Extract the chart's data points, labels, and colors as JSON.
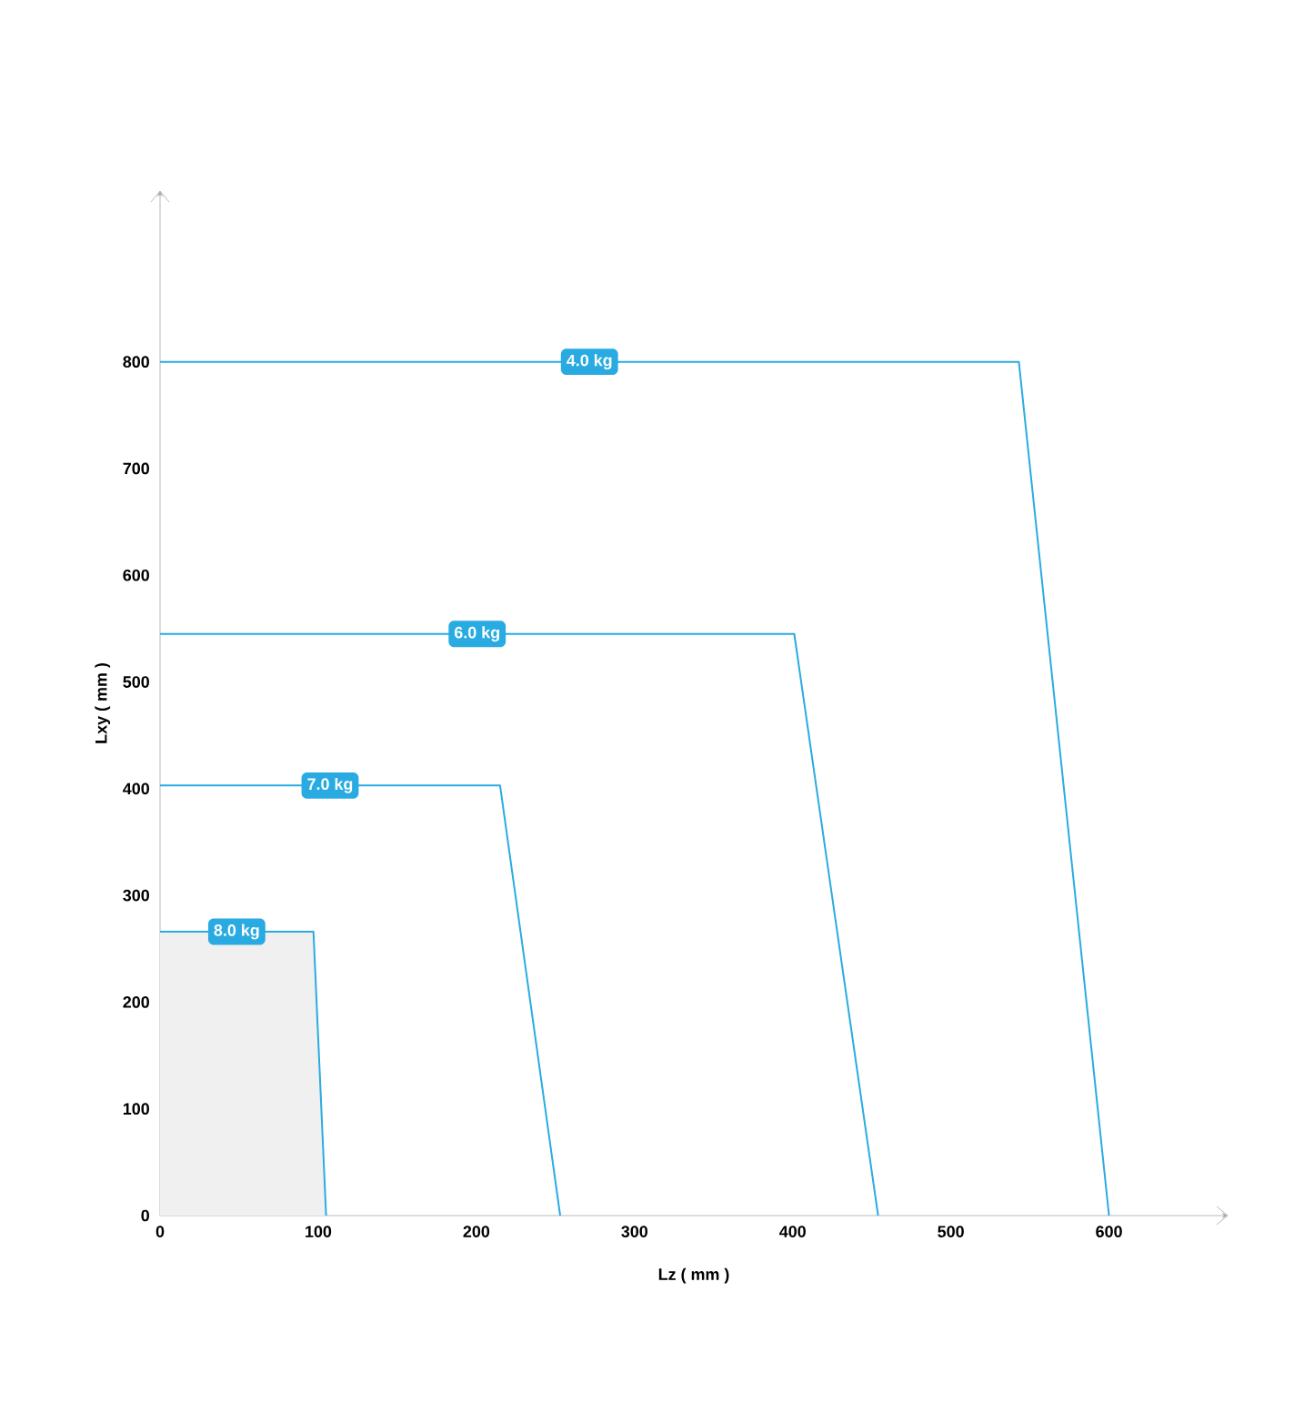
{
  "chart_data": {
    "type": "line",
    "xlabel": "Lz ( mm )",
    "ylabel": "Lxy ( mm )",
    "xlim": [
      0,
      675
    ],
    "ylim": [
      0,
      960
    ],
    "xticks": [
      0,
      100,
      200,
      300,
      400,
      500,
      600
    ],
    "yticks": [
      0,
      100,
      200,
      300,
      400,
      500,
      600,
      700,
      800
    ],
    "grid": false,
    "marker": "none",
    "line_style": "solid",
    "series": [
      {
        "name": "4.0 kg",
        "color": "#29abe2",
        "x": [
          0,
          543,
          600
        ],
        "values": [
          800,
          800,
          0
        ]
      },
      {
        "name": "6.0 kg",
        "color": "#29abe2",
        "x": [
          0,
          401,
          454
        ],
        "values": [
          545,
          545,
          0
        ]
      },
      {
        "name": "7.0 kg",
        "color": "#29abe2",
        "x": [
          0,
          215,
          253
        ],
        "values": [
          403,
          403,
          0
        ]
      },
      {
        "name": "8.0 kg",
        "type": "area",
        "color": "#29abe2",
        "x": [
          0,
          97,
          105
        ],
        "values": [
          266,
          266,
          0
        ]
      }
    ]
  }
}
